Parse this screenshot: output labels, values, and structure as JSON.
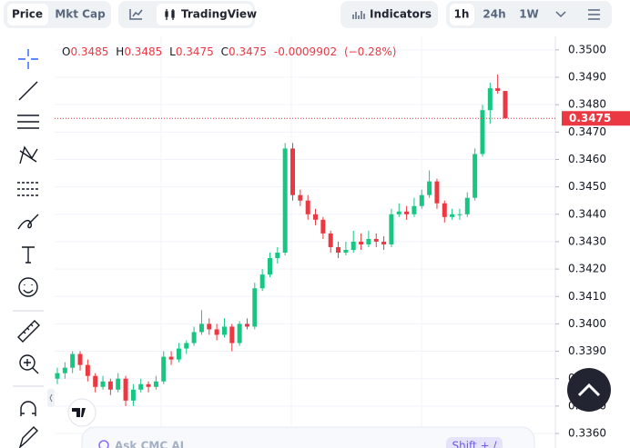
{
  "toolbar": {
    "price": "Price",
    "mkt_cap": "Mkt Cap",
    "tradingview": "TradingView",
    "indicators": "Indicators",
    "intervals": [
      "1h",
      "24h",
      "1W"
    ]
  },
  "header": {
    "open_label": "O",
    "high_label": "H",
    "low_label": "L",
    "close_label": "C",
    "change": "-0.0009902",
    "change_pct": "(−0.28%)"
  },
  "ask_ai": "Ask CMC AI",
  "shortcut": "Shift + /",
  "chart_data": {
    "type": "candlestick",
    "up_color": "#16c784",
    "down_color": "#ea3943",
    "ylim": [
      0.33547,
      0.35182
    ],
    "yticks": [
      {
        "value": 0.35,
        "label": "0.3500"
      },
      {
        "value": 0.349,
        "label": "0.3490"
      },
      {
        "value": 0.348,
        "label": "0.3480"
      },
      {
        "value": 0.347,
        "label": "0.3470"
      },
      {
        "value": 0.346,
        "label": "0.3460"
      },
      {
        "value": 0.345,
        "label": "0.3450"
      },
      {
        "value": 0.344,
        "label": "0.3440"
      },
      {
        "value": 0.343,
        "label": "0.3430"
      },
      {
        "value": 0.342,
        "label": "0.3420"
      },
      {
        "value": 0.341,
        "label": "0.3410"
      },
      {
        "value": 0.34,
        "label": "0.3400"
      },
      {
        "value": 0.339,
        "label": "0.3390"
      },
      {
        "value": 0.338,
        "label": "0.3380"
      },
      {
        "value": 0.337,
        "label": "0.3370"
      },
      {
        "value": 0.336,
        "label": "0.3360"
      }
    ],
    "grid": true,
    "ohlc": [
      [
        0.338,
        0.3384,
        0.3378,
        0.3382
      ],
      [
        0.3382,
        0.3386,
        0.338,
        0.3384
      ],
      [
        0.3384,
        0.339,
        0.3382,
        0.3389
      ],
      [
        0.3389,
        0.339,
        0.3383,
        0.3385
      ],
      [
        0.3385,
        0.3387,
        0.3379,
        0.3381
      ],
      [
        0.3381,
        0.3382,
        0.3375,
        0.3377
      ],
      [
        0.3377,
        0.3381,
        0.3376,
        0.3379
      ],
      [
        0.3379,
        0.338,
        0.3374,
        0.3376
      ],
      [
        0.3376,
        0.3382,
        0.3375,
        0.338
      ],
      [
        0.338,
        0.3381,
        0.337,
        0.3372
      ],
      [
        0.3372,
        0.3378,
        0.337,
        0.3376
      ],
      [
        0.3376,
        0.338,
        0.3375,
        0.3378
      ],
      [
        0.3378,
        0.3379,
        0.3375,
        0.3377
      ],
      [
        0.3377,
        0.3381,
        0.3376,
        0.3379
      ],
      [
        0.3379,
        0.339,
        0.3378,
        0.3388
      ],
      [
        0.3388,
        0.339,
        0.3385,
        0.3387
      ],
      [
        0.3387,
        0.3393,
        0.3386,
        0.3391
      ],
      [
        0.3391,
        0.3394,
        0.3389,
        0.3393
      ],
      [
        0.3393,
        0.3399,
        0.3392,
        0.3397
      ],
      [
        0.3397,
        0.3405,
        0.3396,
        0.34
      ],
      [
        0.34,
        0.3402,
        0.3396,
        0.3398
      ],
      [
        0.3398,
        0.34,
        0.3394,
        0.3396
      ],
      [
        0.3396,
        0.3402,
        0.3395,
        0.3399
      ],
      [
        0.3399,
        0.34,
        0.339,
        0.3393
      ],
      [
        0.3393,
        0.3401,
        0.3392,
        0.34
      ],
      [
        0.34,
        0.3402,
        0.3398,
        0.3399
      ],
      [
        0.3399,
        0.3415,
        0.3398,
        0.3413
      ],
      [
        0.3413,
        0.342,
        0.3412,
        0.3418
      ],
      [
        0.3418,
        0.3426,
        0.3417,
        0.3424
      ],
      [
        0.3424,
        0.3428,
        0.3422,
        0.3426
      ],
      [
        0.3426,
        0.3466,
        0.3425,
        0.3464
      ],
      [
        0.3464,
        0.3466,
        0.3445,
        0.3447
      ],
      [
        0.3447,
        0.3449,
        0.3443,
        0.3445
      ],
      [
        0.3445,
        0.3447,
        0.3438,
        0.344
      ],
      [
        0.344,
        0.3442,
        0.3436,
        0.3438
      ],
      [
        0.3438,
        0.3439,
        0.3431,
        0.3433
      ],
      [
        0.3433,
        0.3434,
        0.3426,
        0.3428
      ],
      [
        0.3428,
        0.343,
        0.3424,
        0.3426
      ],
      [
        0.3426,
        0.343,
        0.3425,
        0.3427
      ],
      [
        0.3427,
        0.3434,
        0.3426,
        0.343
      ],
      [
        0.343,
        0.3433,
        0.3427,
        0.3429
      ],
      [
        0.3429,
        0.3434,
        0.3428,
        0.3431
      ],
      [
        0.3431,
        0.3433,
        0.3428,
        0.343
      ],
      [
        0.343,
        0.3432,
        0.3427,
        0.3429
      ],
      [
        0.3429,
        0.3442,
        0.3428,
        0.344
      ],
      [
        0.344,
        0.3444,
        0.3439,
        0.3441
      ],
      [
        0.3441,
        0.3443,
        0.3438,
        0.344
      ],
      [
        0.344,
        0.3446,
        0.3439,
        0.3443
      ],
      [
        0.3443,
        0.3449,
        0.3442,
        0.3447
      ],
      [
        0.3447,
        0.3456,
        0.3446,
        0.3452
      ],
      [
        0.3452,
        0.3453,
        0.3442,
        0.3444
      ],
      [
        0.3444,
        0.3445,
        0.3437,
        0.3439
      ],
      [
        0.3439,
        0.3442,
        0.3438,
        0.344
      ],
      [
        0.344,
        0.3442,
        0.3438,
        0.344
      ],
      [
        0.344,
        0.3448,
        0.3439,
        0.3446
      ],
      [
        0.3446,
        0.3464,
        0.3445,
        0.3462
      ],
      [
        0.3462,
        0.348,
        0.3461,
        0.3478
      ],
      [
        0.3478,
        0.3488,
        0.3473,
        0.3486
      ],
      [
        0.3486,
        0.3491,
        0.3484,
        0.3485
      ],
      [
        0.3485,
        0.3485,
        0.3475,
        0.3475
      ]
    ]
  }
}
